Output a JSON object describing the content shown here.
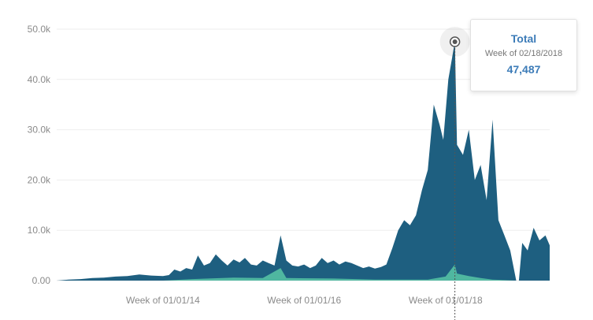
{
  "chart_data": {
    "type": "area",
    "stacked": true,
    "grid": true,
    "ylim": [
      0,
      50000
    ],
    "yticks": [
      {
        "value": 0,
        "label": "0.00"
      },
      {
        "value": 10000,
        "label": "10.0k"
      },
      {
        "value": 20000,
        "label": "20.0k"
      },
      {
        "value": 30000,
        "label": "30.0k"
      },
      {
        "value": 40000,
        "label": "40.0k"
      },
      {
        "value": 50000,
        "label": "50.0k"
      }
    ],
    "xrange": [
      "2012-07-01",
      "2019-06-23"
    ],
    "xticks": [
      {
        "date": "2014-01-01",
        "label": "Week of 01/01/14"
      },
      {
        "date": "2016-01-01",
        "label": "Week of 01/01/16"
      },
      {
        "date": "2018-01-01",
        "label": "Week of 01/01/18"
      }
    ],
    "colors": {
      "main": "#1e5f80",
      "secondary": "#4fb7a0",
      "grid": "#eeeeee",
      "highlight": "#555555"
    },
    "series": [
      {
        "points": [
          [
            "2012-07-01",
            0
          ],
          [
            "2012-09-01",
            200
          ],
          [
            "2012-11-01",
            300
          ],
          [
            "2013-01-01",
            500
          ],
          [
            "2013-03-01",
            600
          ],
          [
            "2013-05-01",
            800
          ],
          [
            "2013-07-01",
            900
          ],
          [
            "2013-09-01",
            1200
          ],
          [
            "2013-11-01",
            1000
          ],
          [
            "2014-01-01",
            900
          ],
          [
            "2014-02-01",
            1100
          ],
          [
            "2014-03-01",
            2200
          ],
          [
            "2014-04-01",
            1800
          ],
          [
            "2014-05-01",
            2500
          ],
          [
            "2014-06-01",
            2200
          ],
          [
            "2014-07-01",
            5000
          ],
          [
            "2014-08-01",
            3000
          ],
          [
            "2014-09-01",
            3500
          ],
          [
            "2014-10-01",
            5200
          ],
          [
            "2014-11-01",
            4000
          ],
          [
            "2014-12-01",
            3000
          ],
          [
            "2015-01-01",
            4200
          ],
          [
            "2015-02-01",
            3600
          ],
          [
            "2015-03-01",
            4500
          ],
          [
            "2015-04-01",
            3200
          ],
          [
            "2015-05-01",
            3000
          ],
          [
            "2015-06-01",
            4000
          ],
          [
            "2015-07-01",
            3500
          ],
          [
            "2015-08-01",
            3000
          ],
          [
            "2015-09-01",
            9000
          ],
          [
            "2015-10-01",
            4000
          ],
          [
            "2015-11-01",
            3000
          ],
          [
            "2015-12-01",
            2800
          ],
          [
            "2016-01-01",
            3200
          ],
          [
            "2016-02-01",
            2500
          ],
          [
            "2016-03-01",
            3000
          ],
          [
            "2016-04-01",
            4500
          ],
          [
            "2016-05-01",
            3500
          ],
          [
            "2016-06-01",
            4000
          ],
          [
            "2016-07-01",
            3200
          ],
          [
            "2016-08-01",
            3800
          ],
          [
            "2016-09-01",
            3500
          ],
          [
            "2016-10-01",
            3000
          ],
          [
            "2016-11-01",
            2500
          ],
          [
            "2016-12-01",
            2800
          ],
          [
            "2017-01-01",
            2400
          ],
          [
            "2017-02-01",
            2700
          ],
          [
            "2017-03-01",
            3200
          ],
          [
            "2017-04-01",
            6500
          ],
          [
            "2017-05-01",
            10000
          ],
          [
            "2017-06-01",
            12000
          ],
          [
            "2017-07-01",
            11000
          ],
          [
            "2017-08-01",
            13000
          ],
          [
            "2017-09-01",
            18000
          ],
          [
            "2017-10-01",
            22000
          ],
          [
            "2017-11-01",
            35000
          ],
          [
            "2017-12-01",
            31000
          ],
          [
            "2017-12-20",
            28000
          ],
          [
            "2018-01-15",
            40000
          ],
          [
            "2018-02-18",
            47487
          ],
          [
            "2018-03-01",
            27000
          ],
          [
            "2018-04-01",
            25000
          ],
          [
            "2018-05-01",
            30000
          ],
          [
            "2018-06-01",
            20000
          ],
          [
            "2018-07-01",
            23000
          ],
          [
            "2018-08-01",
            16000
          ],
          [
            "2018-09-01",
            32000
          ],
          [
            "2018-10-01",
            12000
          ],
          [
            "2018-11-01",
            9000
          ],
          [
            "2018-12-01",
            6000
          ],
          [
            "2019-01-01",
            0
          ],
          [
            "2019-01-15",
            0
          ],
          [
            "2019-02-01",
            7500
          ],
          [
            "2019-03-01",
            6000
          ],
          [
            "2019-04-01",
            10500
          ],
          [
            "2019-05-01",
            8000
          ],
          [
            "2019-06-01",
            9000
          ],
          [
            "2019-06-23",
            7000
          ]
        ]
      },
      {
        "points": [
          [
            "2012-07-01",
            0
          ],
          [
            "2014-01-01",
            0
          ],
          [
            "2014-06-01",
            300
          ],
          [
            "2015-01-01",
            600
          ],
          [
            "2015-06-01",
            500
          ],
          [
            "2015-09-01",
            2500
          ],
          [
            "2015-10-01",
            500
          ],
          [
            "2016-06-01",
            400
          ],
          [
            "2017-01-01",
            200
          ],
          [
            "2017-10-01",
            200
          ],
          [
            "2018-01-01",
            800
          ],
          [
            "2018-02-18",
            3200
          ],
          [
            "2018-03-01",
            1400
          ],
          [
            "2018-05-01",
            900
          ],
          [
            "2018-07-01",
            500
          ],
          [
            "2018-09-01",
            200
          ],
          [
            "2019-01-01",
            0
          ],
          [
            "2019-06-23",
            0
          ]
        ]
      }
    ],
    "tooltip": {
      "title": "Total",
      "subtitle": "Week of 02/18/2018",
      "value": "47,487",
      "date": "2018-02-18",
      "y": 47487
    }
  }
}
